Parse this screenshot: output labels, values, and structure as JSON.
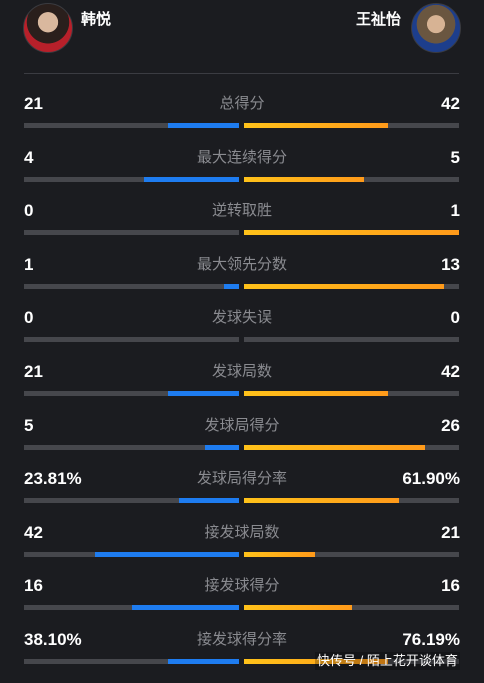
{
  "players": {
    "left": {
      "name": "韩悦",
      "color": "#1e7cf0"
    },
    "right": {
      "name": "王祉怡",
      "color": "#ffaa1a"
    }
  },
  "stats": [
    {
      "label": "总得分",
      "left": "21",
      "right": "42",
      "left_fraction": 0.33,
      "right_fraction": 0.67
    },
    {
      "label": "最大连续得分",
      "left": "4",
      "right": "5",
      "left_fraction": 0.44,
      "right_fraction": 0.56
    },
    {
      "label": "逆转取胜",
      "left": "0",
      "right": "1",
      "left_fraction": 0.0,
      "right_fraction": 1.0
    },
    {
      "label": "最大领先分数",
      "left": "1",
      "right": "13",
      "left_fraction": 0.07,
      "right_fraction": 0.93
    },
    {
      "label": "发球失误",
      "left": "0",
      "right": "0",
      "left_fraction": 0.0,
      "right_fraction": 0.0
    },
    {
      "label": "发球局数",
      "left": "21",
      "right": "42",
      "left_fraction": 0.33,
      "right_fraction": 0.67
    },
    {
      "label": "发球局得分",
      "left": "5",
      "right": "26",
      "left_fraction": 0.16,
      "right_fraction": 0.84
    },
    {
      "label": "发球局得分率",
      "left": "23.81%",
      "right": "61.90%",
      "left_fraction": 0.28,
      "right_fraction": 0.72
    },
    {
      "label": "接发球局数",
      "left": "42",
      "right": "21",
      "left_fraction": 0.67,
      "right_fraction": 0.33
    },
    {
      "label": "接发球得分",
      "left": "16",
      "right": "16",
      "left_fraction": 0.5,
      "right_fraction": 0.5
    },
    {
      "label": "接发球得分率",
      "left": "38.10%",
      "right": "76.19%",
      "left_fraction": 0.33,
      "right_fraction": 0.67
    }
  ],
  "watermark": "快传号 / 陌上花开谈体育"
}
